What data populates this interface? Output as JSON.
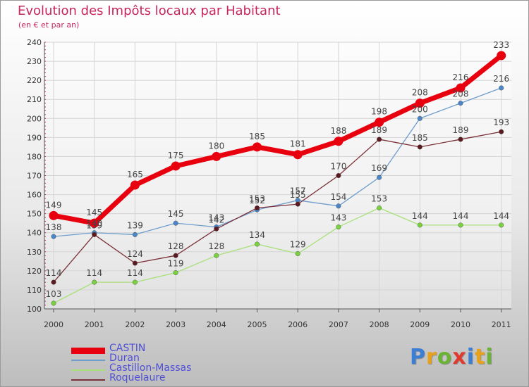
{
  "title": "Evolution des Impôts locaux par Habitant",
  "subtitle": "(en € et par an)",
  "logo": "Proxiti",
  "colors": {
    "title": "#c8255f",
    "legend_text": "#4f4fd6",
    "axis": "#555555",
    "grid": "#d4d4d4"
  },
  "chart_data": {
    "type": "line",
    "title": "Evolution des Impôts locaux par Habitant",
    "subtitle": "(en € et par an)",
    "x": [
      "2000",
      "2001",
      "2002",
      "2003",
      "2004",
      "2005",
      "2006",
      "2007",
      "2008",
      "2009",
      "2010",
      "2011"
    ],
    "ylim": [
      100,
      240
    ],
    "yticks": [
      100,
      110,
      120,
      130,
      140,
      150,
      160,
      170,
      180,
      190,
      200,
      210,
      220,
      230,
      240
    ],
    "grid": true,
    "legend_position": "bottom-left",
    "series": [
      {
        "name": "CASTIN",
        "color": "#e8000f",
        "marker_color": "#e8000f",
        "emphasis": "thick",
        "values": [
          149,
          145,
          165,
          175,
          180,
          185,
          181,
          188,
          198,
          208,
          216,
          233
        ]
      },
      {
        "name": "Duran",
        "color": "#6e9dcc",
        "marker_color": "#4a86c8",
        "emphasis": "thin",
        "values": [
          138,
          140,
          139,
          145,
          143,
          152,
          157,
          154,
          169,
          200,
          208,
          216
        ]
      },
      {
        "name": "Castillon-Massas",
        "color": "#a9e07a",
        "marker_color": "#79d13f",
        "emphasis": "thin",
        "values": [
          103,
          114,
          114,
          119,
          128,
          134,
          129,
          143,
          153,
          144,
          144,
          144
        ]
      },
      {
        "name": "Roquelaure",
        "color": "#7a3038",
        "marker_color": "#5c1a20",
        "emphasis": "thin",
        "values": [
          114,
          139,
          124,
          128,
          142,
          153,
          155,
          170,
          189,
          185,
          189,
          193
        ]
      }
    ],
    "labels": [
      {
        "series": 0,
        "text": [
          "149",
          "145",
          "165",
          "175",
          "180",
          "185",
          "181",
          "188",
          "198",
          "208",
          "216",
          "233"
        ]
      },
      {
        "series": 1,
        "text": [
          "138",
          "140",
          "139",
          "145",
          "143",
          "152",
          "157",
          "154",
          "169",
          "200",
          "208",
          "216"
        ]
      },
      {
        "series": 2,
        "text": [
          "103",
          "114",
          "114",
          "119",
          "128",
          "134",
          "129",
          "143",
          "153",
          "144",
          "144",
          "144"
        ]
      },
      {
        "series": 3,
        "text": [
          "114",
          "139",
          "124",
          "128",
          "142",
          "153",
          "155",
          "170",
          "189",
          "185",
          "189",
          "193"
        ]
      }
    ]
  }
}
